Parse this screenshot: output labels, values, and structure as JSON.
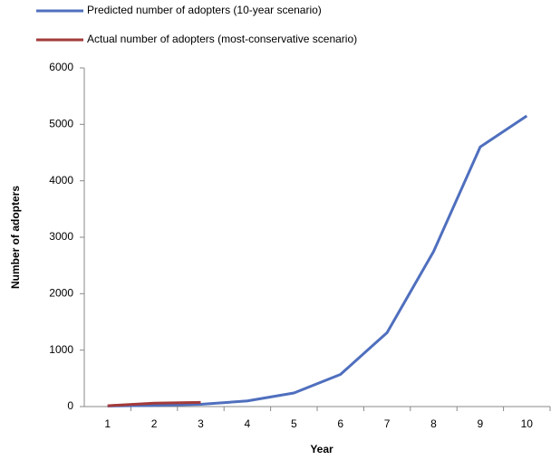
{
  "chart_data": {
    "type": "line",
    "x_label": "Year",
    "y_label": "Number of adopters",
    "categories": [
      1,
      2,
      3,
      4,
      5,
      6,
      7,
      8,
      9,
      10
    ],
    "series": [
      {
        "name": "Predicted number of adopters (10-year scenario)",
        "color": "#4f6fbe",
        "values": [
          10,
          20,
          40,
          100,
          240,
          570,
          1310,
          2750,
          4600,
          5150
        ]
      },
      {
        "name": "Actual number of adopters (most-conservative scenario)",
        "color": "#a33a3a",
        "values": [
          15,
          60,
          75,
          null,
          null,
          null,
          null,
          null,
          null,
          null
        ]
      }
    ],
    "ylim": [
      0,
      6000
    ],
    "yticks": [
      0,
      1000,
      2000,
      3000,
      4000,
      5000,
      6000
    ],
    "grid": false
  }
}
